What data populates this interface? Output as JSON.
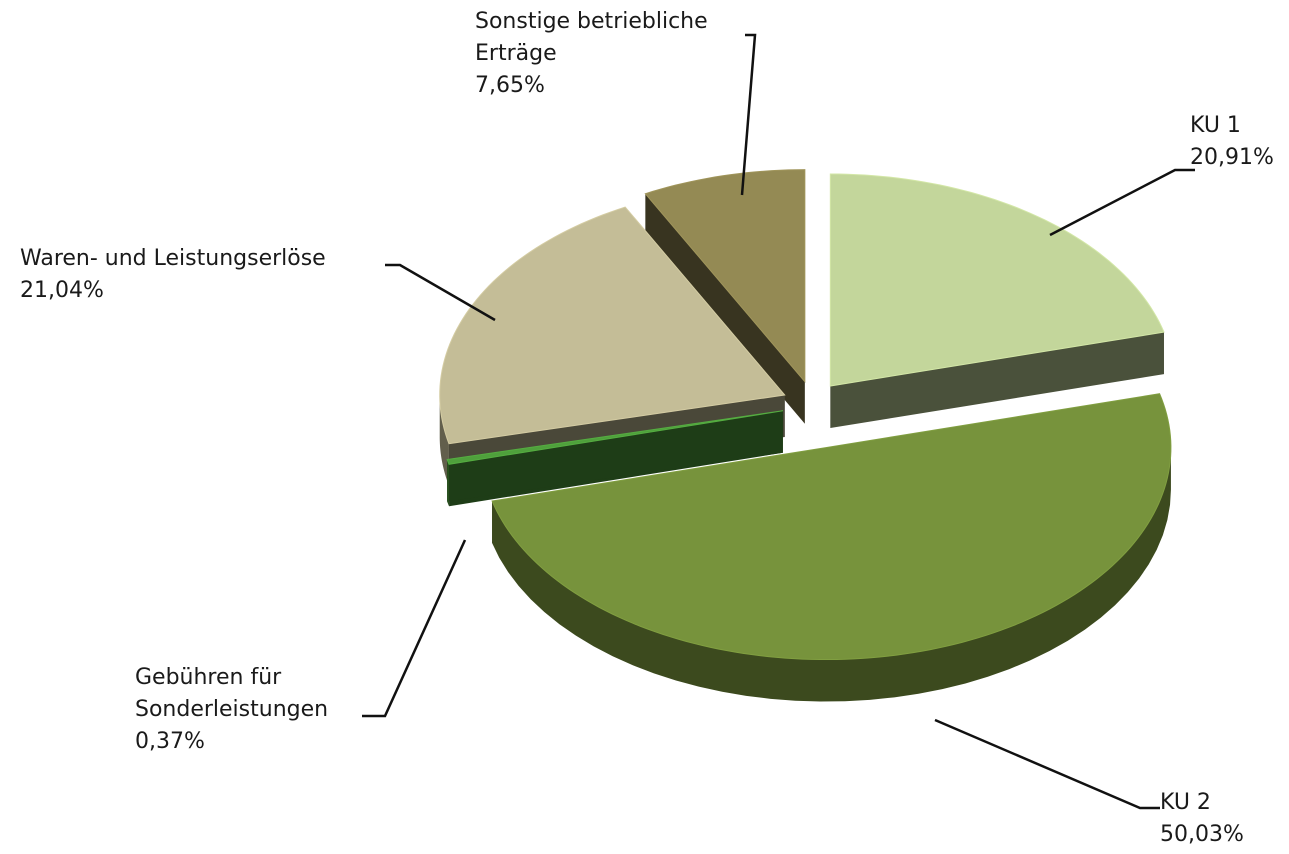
{
  "chart_data": {
    "type": "pie",
    "categories": [
      "KU 1",
      "KU 2",
      "Gebühren für Sonderleistungen",
      "Waren- und Leistungserlöse",
      "Sonstige betriebliche Erträge"
    ],
    "values": [
      20.91,
      50.03,
      0.37,
      21.04,
      7.65
    ],
    "value_labels": [
      "20,91%",
      "50,03%",
      "0,37%",
      "21,04%",
      "7,65%"
    ],
    "colors": [
      "#c3d69b",
      "#77933c",
      "#4fa03c",
      "#c4bd97",
      "#948a54"
    ]
  }
}
